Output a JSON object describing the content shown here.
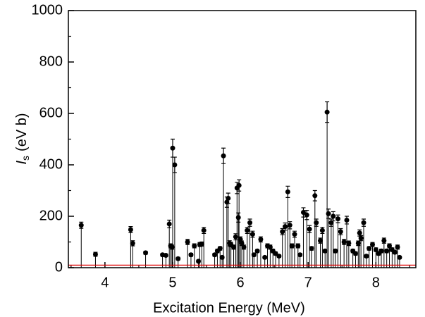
{
  "chart_data": {
    "type": "scatter",
    "x_label": "Excitation Energy (MeV)",
    "y_label": {
      "symbol": "I",
      "subscript": "s",
      "unit": "(eV b)"
    },
    "xlim": [
      3.46,
      8.59
    ],
    "ylim": [
      0,
      1000
    ],
    "xticks": [
      4,
      5,
      6,
      7,
      8
    ],
    "yticks": [
      0,
      200,
      400,
      600,
      800,
      1000
    ],
    "x_minor_ticks": [
      3.5,
      4.5,
      5.5,
      6.5,
      7.5,
      8.5
    ],
    "y_minor_ticks": [
      100,
      300,
      500,
      700,
      900
    ],
    "reference_line": {
      "value": 10,
      "color": "#e00000"
    },
    "x": [
      3.65,
      3.86,
      4.38,
      4.41,
      4.6,
      4.85,
      4.9,
      4.95,
      4.97,
      4.99,
      5.0,
      5.03,
      5.08,
      5.22,
      5.27,
      5.32,
      5.38,
      5.4,
      5.43,
      5.46,
      5.62,
      5.66,
      5.7,
      5.73,
      5.75,
      5.8,
      5.82,
      5.84,
      5.86,
      5.9,
      5.93,
      5.95,
      5.97,
      5.98,
      6.0,
      6.02,
      6.05,
      6.1,
      6.14,
      6.18,
      6.2,
      6.25,
      6.3,
      6.36,
      6.4,
      6.44,
      6.48,
      6.52,
      6.57,
      6.62,
      6.66,
      6.7,
      6.73,
      6.76,
      6.8,
      6.85,
      6.88,
      6.93,
      6.98,
      7.02,
      7.05,
      7.1,
      7.12,
      7.18,
      7.21,
      7.25,
      7.28,
      7.3,
      7.34,
      7.37,
      7.4,
      7.44,
      7.48,
      7.53,
      7.57,
      7.6,
      7.66,
      7.7,
      7.74,
      7.76,
      7.78,
      7.82,
      7.86,
      7.9,
      7.95,
      8.0,
      8.04,
      8.08,
      8.12,
      8.16,
      8.2,
      8.24,
      8.28,
      8.32,
      8.35
    ],
    "series": [
      {
        "color": "#000000",
        "values": [
          165,
          52,
          148,
          95,
          58,
          50,
          48,
          170,
          85,
          80,
          465,
          400,
          35,
          100,
          50,
          85,
          25,
          90,
          92,
          145,
          50,
          65,
          75,
          40,
          435,
          255,
          270,
          95,
          90,
          80,
          120,
          310,
          195,
          320,
          110,
          95,
          80,
          145,
          175,
          130,
          50,
          65,
          110,
          40,
          85,
          80,
          65,
          55,
          45,
          140,
          160,
          295,
          165,
          85,
          130,
          85,
          50,
          215,
          205,
          150,
          75,
          280,
          175,
          105,
          145,
          65,
          605,
          210,
          175,
          200,
          65,
          190,
          140,
          100,
          185,
          95,
          65,
          55,
          95,
          135,
          115,
          175,
          45,
          75,
          90,
          70,
          55,
          65,
          105,
          65,
          85,
          70,
          60,
          80,
          40
        ],
        "errors": [
          12,
          8,
          12,
          10,
          6,
          5,
          5,
          15,
          8,
          8,
          35,
          30,
          5,
          10,
          6,
          8,
          5,
          8,
          8,
          12,
          6,
          7,
          7,
          5,
          30,
          20,
          20,
          10,
          9,
          8,
          12,
          22,
          18,
          22,
          10,
          9,
          8,
          12,
          14,
          12,
          6,
          6,
          10,
          5,
          8,
          8,
          7,
          6,
          5,
          12,
          14,
          22,
          14,
          8,
          12,
          8,
          6,
          18,
          18,
          14,
          7,
          20,
          14,
          10,
          12,
          6,
          40,
          18,
          14,
          18,
          7,
          15,
          12,
          10,
          15,
          9,
          7,
          6,
          9,
          12,
          10,
          14,
          5,
          7,
          8,
          7,
          6,
          7,
          10,
          7,
          8,
          7,
          6,
          8,
          5
        ]
      }
    ]
  }
}
